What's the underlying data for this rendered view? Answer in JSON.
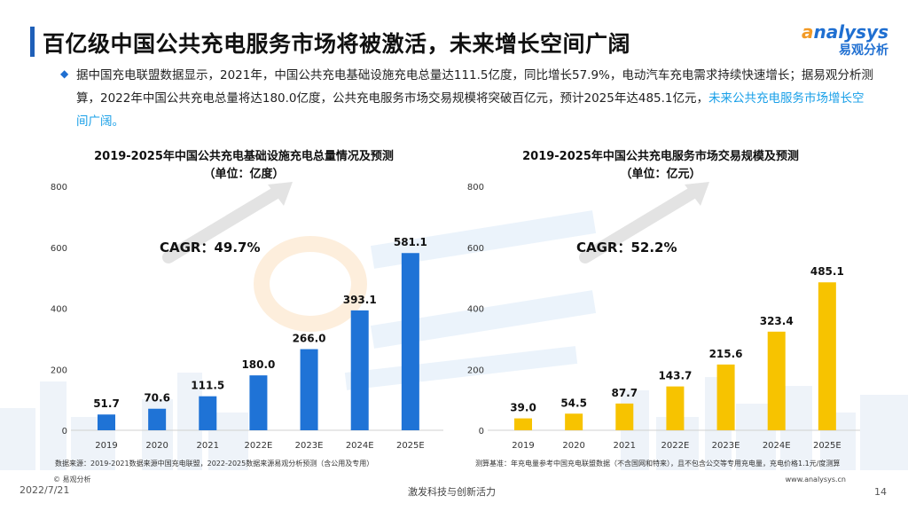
{
  "header": {
    "title": "百亿级中国公共充电服务市场将被激活，未来增长空间广阔",
    "logo_en_a": "a",
    "logo_en_rest": "nalysys",
    "logo_cn": "易观分析"
  },
  "summary": {
    "bullet": "◆",
    "text": "据中国充电联盟数据显示，2021年，中国公共充电基础设施充电总量达111.5亿度，同比增长57.9%，电动汽车充电需求持续快速增长；据易观分析测算，2022年中国公共充电总量将达180.0亿度，公共充电服务市场交易规模将突破百亿元，预计2025年达485.1亿元，",
    "highlight": "未来公共充电服务市场增长空间广阔。"
  },
  "chart_data": [
    {
      "type": "bar",
      "title": "2019-2025年中国公共充电基础设施充电总量情况及预测",
      "subtitle": "（单位：亿度）",
      "categories": [
        "2019",
        "2020",
        "2021",
        "2022E",
        "2023E",
        "2024E",
        "2025E"
      ],
      "values": [
        51.7,
        70.6,
        111.5,
        180.0,
        266.0,
        393.1,
        581.1
      ],
      "value_labels": [
        "51.7",
        "70.6",
        "111.5",
        "180.0",
        "266.0",
        "393.1",
        "581.1"
      ],
      "yticks": [
        "0",
        "200",
        "400",
        "600",
        "800"
      ],
      "ylim": [
        0,
        800
      ],
      "annotation": "CAGR：49.7%",
      "color": "#1f73d6",
      "source": "数据来源：2019-2021数据来源中国充电联盟，2022-2025数据来源易观分析预测（含公用及专用）"
    },
    {
      "type": "bar",
      "title": "2019-2025年中国公共充电服务市场交易规模及预测",
      "subtitle": "（单位：亿元）",
      "categories": [
        "2019",
        "2020",
        "2021",
        "2022E",
        "2023E",
        "2024E",
        "2025E"
      ],
      "values": [
        39.0,
        54.5,
        87.7,
        143.7,
        215.6,
        323.4,
        485.1
      ],
      "value_labels": [
        "39.0",
        "54.5",
        "87.7",
        "143.7",
        "215.6",
        "323.4",
        "485.1"
      ],
      "yticks": [
        "0",
        "200",
        "400",
        "600",
        "800"
      ],
      "ylim": [
        0,
        800
      ],
      "annotation": "CAGR：52.2%",
      "color": "#f7c300",
      "source": "测算基准：年充电量参考中国充电联盟数据（不含国网和特来），且不包含公交等专用充电量，充电价格1.1元/度测算"
    }
  ],
  "footer": {
    "copyright": "© 易观分析",
    "date": "2022/7/21",
    "slogan": "激发科技与创新活力",
    "website": "www.analysys.cn",
    "page": "14"
  },
  "colors": {
    "accent": "#1f5fb8",
    "highlight_text": "#1aa0e8"
  }
}
